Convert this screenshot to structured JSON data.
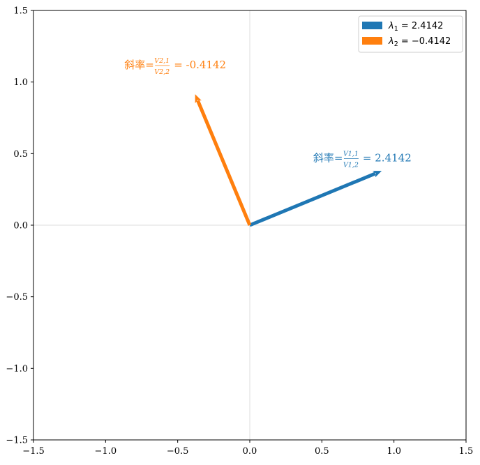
{
  "chart_data": {
    "type": "vector",
    "xlim": [
      -1.5,
      1.5
    ],
    "ylim": [
      -1.5,
      1.5
    ],
    "xticks": [
      "−1.5",
      "−1.0",
      "−0.5",
      "0.0",
      "0.5",
      "1.0",
      "1.5"
    ],
    "yticks": [
      "−1.5",
      "−1.0",
      "−0.5",
      "0.0",
      "0.5",
      "1.0",
      "1.5"
    ],
    "xtick_values": [
      -1.5,
      -1.0,
      -0.5,
      0.0,
      0.5,
      1.0,
      1.5
    ],
    "ytick_values": [
      -1.5,
      -1.0,
      -0.5,
      0.0,
      0.5,
      1.0,
      1.5
    ],
    "axis_lines_at_zero": true,
    "legend_position": "top-right",
    "series": [
      {
        "name": "λ1 = 2.4142",
        "legend_symbol": "λ",
        "legend_sub": "1",
        "legend_value": "= 2.4142",
        "color": "#1f77b4",
        "origin": [
          0,
          0
        ],
        "vector": [
          0.9239,
          0.3827
        ],
        "annotation": {
          "prefix": "斜率=",
          "num": "V1,1",
          "den": "V1,2",
          "suffix": "= 2.4142",
          "position": [
            0.44,
            0.47
          ]
        }
      },
      {
        "name": "λ2 = −0.4142",
        "legend_symbol": "λ",
        "legend_sub": "2",
        "legend_value": "= −0.4142",
        "color": "#ff7f0e",
        "origin": [
          0,
          0
        ],
        "vector": [
          -0.3827,
          0.9239
        ],
        "annotation": {
          "prefix": "斜率=",
          "num": "V2,1",
          "den": "V2,2",
          "suffix": "= -0.4142",
          "position": [
            -0.87,
            1.12
          ]
        }
      }
    ]
  }
}
